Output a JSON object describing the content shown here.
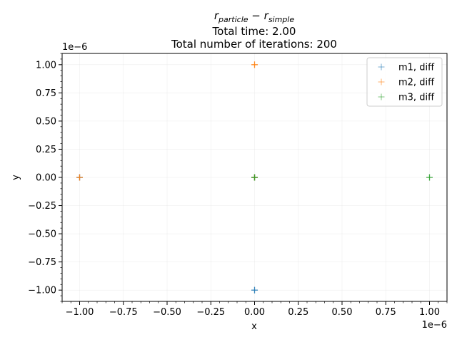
{
  "chart_data": {
    "type": "scatter",
    "title_math": {
      "base": "r",
      "sub1": "particle",
      "minus": " − ",
      "sub2": "simple"
    },
    "title_lines": [
      "Total time: 2.00",
      "Total number of iterations: 200"
    ],
    "xlabel": "x",
    "ylabel": "y",
    "x_offset_text": "1e−6",
    "y_offset_text": "1e−6",
    "xlim": [
      -1.1,
      1.1
    ],
    "ylim": [
      -1.1,
      1.1
    ],
    "xticks": [
      -1.0,
      -0.75,
      -0.5,
      -0.25,
      0.0,
      0.25,
      0.5,
      0.75,
      1.0
    ],
    "xtick_labels": [
      "−1.00",
      "−0.75",
      "−0.50",
      "−0.25",
      "0.00",
      "0.25",
      "0.50",
      "0.75",
      "1.00"
    ],
    "yticks": [
      1.0,
      0.75,
      0.5,
      0.25,
      0.0,
      -0.25,
      -0.5,
      -0.75,
      -1.0
    ],
    "ytick_labels": [
      "1.00",
      "0.75",
      "0.50",
      "0.25",
      "0.00",
      "−0.25",
      "−0.50",
      "−0.75",
      "−1.00"
    ],
    "grid": true,
    "legend_position": "top-right",
    "marker": "+",
    "series": [
      {
        "name": "m1, diff",
        "color": "#1f77b4",
        "points": [
          [
            0.0,
            0.0
          ],
          [
            0.0,
            -1.0
          ],
          [
            -1.0,
            0.0
          ]
        ]
      },
      {
        "name": "m2, diff",
        "color": "#ff7f0e",
        "points": [
          [
            0.0,
            0.0
          ],
          [
            0.0,
            1.0
          ],
          [
            -1.0,
            0.0
          ]
        ]
      },
      {
        "name": "m3, diff",
        "color": "#2ca02c",
        "points": [
          [
            0.0,
            0.0
          ],
          [
            1.0,
            0.0
          ]
        ]
      }
    ]
  }
}
